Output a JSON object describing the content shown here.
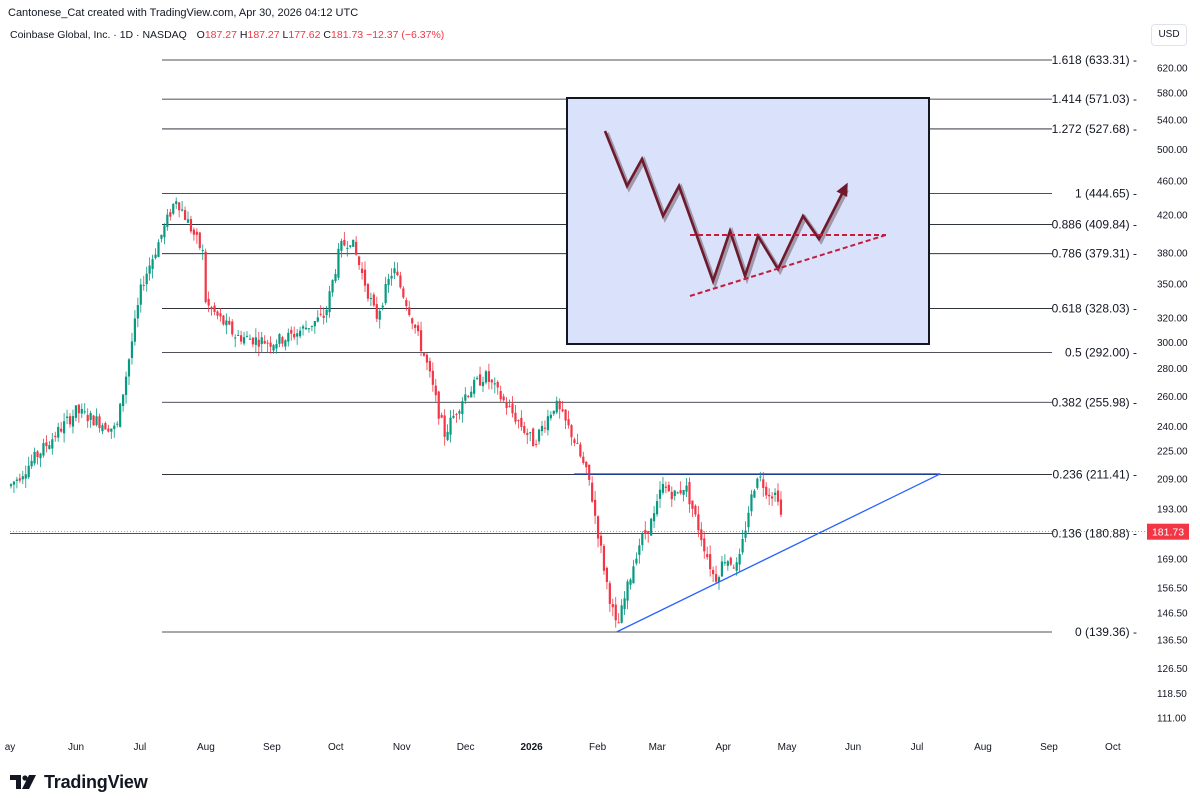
{
  "header": {
    "credit": "Cantonese_Cat created with TradingView.com, Apr 30, 2026 04:12 UTC",
    "symbol": "Coinbase Global, Inc. · 1D · NASDAQ",
    "ohlc": {
      "o_label": "O",
      "o": "187.27",
      "h_label": "H",
      "h": "187.27",
      "l_label": "L",
      "l": "177.62",
      "c_label": "C",
      "c": "181.73",
      "change": "−12.37 (−6.37%)"
    },
    "currency": "USD"
  },
  "brand": {
    "logo_icon": "tradingview-logo-icon",
    "name": "TradingView"
  },
  "chart_data": {
    "type": "candlestick",
    "y_scale": "log",
    "ylim": [
      104,
      680
    ],
    "y_ticks": [
      "620.00",
      "580.00",
      "540.00",
      "500.00",
      "460.00",
      "420.00",
      "380.00",
      "350.00",
      "320.00",
      "300.00",
      "280.00",
      "260.00",
      "240.00",
      "225.00",
      "209.00",
      "193.00",
      "169.00",
      "156.50",
      "146.50",
      "136.50",
      "126.50",
      "118.50",
      "111.00"
    ],
    "y_tick_values": [
      620,
      580,
      540,
      500,
      460,
      420,
      380,
      350,
      320,
      300,
      280,
      260,
      240,
      225,
      209,
      193,
      169,
      156.5,
      146.5,
      136.5,
      126.5,
      118.5,
      111
    ],
    "x_ticks": [
      {
        "label": "ay",
        "date": "2025-05-01"
      },
      {
        "label": "Jun",
        "date": "2025-06-01"
      },
      {
        "label": "Jul",
        "date": "2025-07-01"
      },
      {
        "label": "Aug",
        "date": "2025-08-01"
      },
      {
        "label": "Sep",
        "date": "2025-09-01"
      },
      {
        "label": "Oct",
        "date": "2025-10-01"
      },
      {
        "label": "Nov",
        "date": "2025-11-01"
      },
      {
        "label": "Dec",
        "date": "2025-12-01"
      },
      {
        "label": "2026",
        "date": "2026-01-01",
        "bold": true
      },
      {
        "label": "Feb",
        "date": "2026-02-01"
      },
      {
        "label": "Mar",
        "date": "2026-03-01"
      },
      {
        "label": "Apr",
        "date": "2026-04-01"
      },
      {
        "label": "May",
        "date": "2026-05-01"
      },
      {
        "label": "Jun",
        "date": "2026-06-01"
      },
      {
        "label": "Jul",
        "date": "2026-07-01"
      },
      {
        "label": "Aug",
        "date": "2026-08-01"
      },
      {
        "label": "Sep",
        "date": "2026-09-01"
      },
      {
        "label": "Oct",
        "date": "2026-10-01"
      }
    ],
    "fib_levels": [
      {
        "label": "1.618 (633.31)",
        "ratio": 1.618,
        "price": 633.31
      },
      {
        "label": "1.414 (571.03)",
        "ratio": 1.414,
        "price": 571.03
      },
      {
        "label": "1.272 (527.68)",
        "ratio": 1.272,
        "price": 527.68
      },
      {
        "label": "1 (444.65)",
        "ratio": 1,
        "price": 444.65
      },
      {
        "label": "0.886 (409.84)",
        "ratio": 0.886,
        "price": 409.84
      },
      {
        "label": "0.786 (379.31)",
        "ratio": 0.786,
        "price": 379.31
      },
      {
        "label": "0.618 (328.03)",
        "ratio": 0.618,
        "price": 328.03
      },
      {
        "label": "0.5 (292.00)",
        "ratio": 0.5,
        "price": 292.0
      },
      {
        "label": "0.382 (255.98)",
        "ratio": 0.382,
        "price": 255.98
      },
      {
        "label": "0.236 (211.41)",
        "ratio": 0.236,
        "price": 211.41
      },
      {
        "label": "0.136 (180.88)",
        "ratio": 0.136,
        "price": 180.88
      },
      {
        "label": "0 (139.36)",
        "ratio": 0,
        "price": 139.36
      }
    ],
    "last_price": {
      "label": "181.73",
      "price": 181.73
    },
    "trendlines": [
      {
        "name": "resistance",
        "from": {
          "date": "2026-01-21",
          "price": 211.8
        },
        "to": {
          "date": "2026-07-12",
          "price": 211.8
        }
      },
      {
        "name": "rising-support",
        "from": {
          "date": "2026-02-10",
          "price": 139.4
        },
        "to": {
          "date": "2026-07-12",
          "price": 211.8
        }
      }
    ],
    "anchors": [
      {
        "date": "2025-05-01",
        "price": 205
      },
      {
        "date": "2025-06-01",
        "price": 250
      },
      {
        "date": "2025-06-20",
        "price": 238
      },
      {
        "date": "2025-07-02",
        "price": 350
      },
      {
        "date": "2025-07-10",
        "price": 392
      },
      {
        "date": "2025-07-18",
        "price": 440
      },
      {
        "date": "2025-07-31",
        "price": 378
      },
      {
        "date": "2025-08-01",
        "price": 332
      },
      {
        "date": "2025-08-15",
        "price": 305
      },
      {
        "date": "2025-09-01",
        "price": 300
      },
      {
        "date": "2025-09-10",
        "price": 305
      },
      {
        "date": "2025-09-26",
        "price": 322
      },
      {
        "date": "2025-10-03",
        "price": 385
      },
      {
        "date": "2025-10-08",
        "price": 395
      },
      {
        "date": "2025-10-20",
        "price": 320
      },
      {
        "date": "2025-10-28",
        "price": 365
      },
      {
        "date": "2025-11-04",
        "price": 330
      },
      {
        "date": "2025-11-13",
        "price": 282
      },
      {
        "date": "2025-11-21",
        "price": 235
      },
      {
        "date": "2025-11-30",
        "price": 260
      },
      {
        "date": "2025-12-10",
        "price": 275
      },
      {
        "date": "2026-01-02",
        "price": 230
      },
      {
        "date": "2026-01-12",
        "price": 255
      },
      {
        "date": "2026-01-20",
        "price": 235
      },
      {
        "date": "2026-01-28",
        "price": 208
      },
      {
        "date": "2026-02-05",
        "price": 160
      },
      {
        "date": "2026-02-10",
        "price": 140
      },
      {
        "date": "2026-02-20",
        "price": 175
      },
      {
        "date": "2026-02-28",
        "price": 190
      },
      {
        "date": "2026-03-03",
        "price": 205
      },
      {
        "date": "2026-03-10",
        "price": 200
      },
      {
        "date": "2026-03-14",
        "price": 206
      },
      {
        "date": "2026-03-20",
        "price": 185
      },
      {
        "date": "2026-03-28",
        "price": 160
      },
      {
        "date": "2026-04-02",
        "price": 170
      },
      {
        "date": "2026-04-08",
        "price": 165
      },
      {
        "date": "2026-04-13",
        "price": 193
      },
      {
        "date": "2026-04-17",
        "price": 212
      },
      {
        "date": "2026-04-22",
        "price": 202
      },
      {
        "date": "2026-04-27",
        "price": 200
      },
      {
        "date": "2026-04-29",
        "price": 182
      }
    ],
    "inset": {
      "pattern_path": [
        [
          0,
          0
        ],
        [
          22,
          55
        ],
        [
          37,
          28
        ],
        [
          58,
          85
        ],
        [
          74,
          55
        ],
        [
          108,
          150
        ],
        [
          125,
          100
        ],
        [
          140,
          145
        ],
        [
          153,
          105
        ],
        [
          173,
          138
        ],
        [
          198,
          85
        ],
        [
          214,
          108
        ],
        [
          240,
          57
        ]
      ],
      "resistance_y": 104,
      "support_line": [
        [
          95,
          165
        ],
        [
          281,
          104
        ]
      ],
      "colors": {
        "bg": "#d9e2fa",
        "border": "#131722",
        "path": "#6e1a2c",
        "dash": "#c41c3c"
      }
    },
    "colors": {
      "up": "#089981",
      "down": "#f23645",
      "fib": "#131722",
      "trend": "#2962ff",
      "last_line": "#f23645"
    }
  }
}
